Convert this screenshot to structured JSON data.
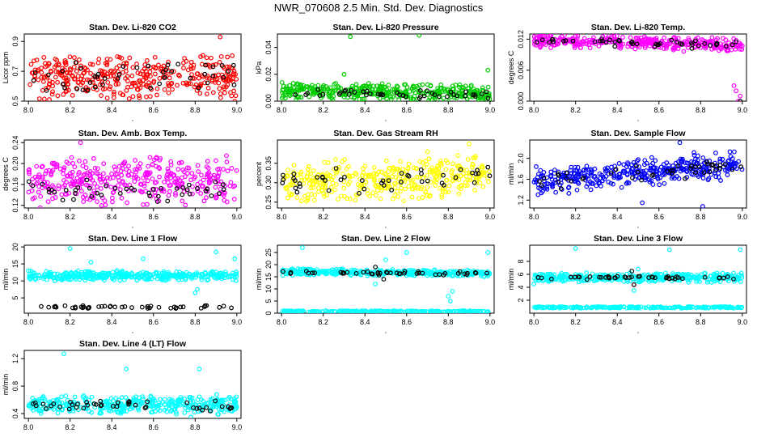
{
  "page_title": "NWR_070608  2.5 Min. Std. Dev. Diagnostics",
  "chart_data": [
    {
      "type": "scatter",
      "title": "Stan. Dev. Li-820 CO2",
      "ylabel": "Licor ppm",
      "color": "#ff0000",
      "xlim": [
        7.98,
        9.02
      ],
      "ylim": [
        0.5,
        0.95
      ],
      "xticks": [
        "8.0",
        "8.2",
        "8.4",
        "8.6",
        "8.8",
        "9.0"
      ],
      "yticks": [
        "0.5",
        "0.7",
        "0.9"
      ],
      "series": [
        {
          "name": "colored",
          "base": 0.66,
          "spread": 0.16,
          "trend": 0,
          "outliers": [
            [
              8.92,
              0.93
            ],
            [
              8.99,
              0.5
            ]
          ]
        },
        {
          "name": "black",
          "base": 0.67,
          "spread": 0.13,
          "trend": 0,
          "outliers": []
        }
      ]
    },
    {
      "type": "scatter",
      "title": "Stan. Dev. Li-820 Pressure",
      "ylabel": "kPa",
      "color": "#00cc00",
      "xlim": [
        7.98,
        9.02
      ],
      "ylim": [
        0,
        0.05
      ],
      "xticks": [
        "8.0",
        "8.2",
        "8.4",
        "8.6",
        "8.8",
        "9.0"
      ],
      "yticks": [
        "0.00",
        "0.02",
        "0.04"
      ],
      "series": [
        {
          "name": "colored",
          "base": 0.008,
          "spread": 0.007,
          "trend": -0.002,
          "outliers": [
            [
              8.33,
              0.048
            ],
            [
              8.66,
              0.049
            ],
            [
              8.99,
              0.023
            ],
            [
              8.3,
              0.02
            ]
          ]
        },
        {
          "name": "black",
          "base": 0.006,
          "spread": 0.004,
          "trend": -0.002,
          "outliers": []
        }
      ]
    },
    {
      "type": "scatter",
      "title": "Stan. Dev. Li-820 Temp.",
      "ylabel": "degrees C",
      "color": "#ff00ff",
      "xlim": [
        7.98,
        9.02
      ],
      "ylim": [
        0,
        0.013
      ],
      "xticks": [
        "8.0",
        "8.2",
        "8.4",
        "8.6",
        "8.8",
        "9.0"
      ],
      "yticks": [
        "0.000",
        "0.006",
        "0.012"
      ],
      "series": [
        {
          "name": "colored",
          "base": 0.0118,
          "spread": 0.0015,
          "trend": -0.001,
          "outliers": [
            [
              8.96,
              0.003
            ],
            [
              8.98,
              0.0
            ],
            [
              8.99,
              0.001
            ],
            [
              8.97,
              0.002
            ]
          ]
        },
        {
          "name": "black",
          "base": 0.0118,
          "spread": 0.001,
          "trend": -0.001,
          "outliers": [
            [
              8.99,
              0.0
            ]
          ]
        }
      ]
    },
    {
      "type": "scatter",
      "title": "Stan. Dev. Amb. Box Temp.",
      "ylabel": "degrees C",
      "color": "#ff00ff",
      "xlim": [
        7.98,
        9.02
      ],
      "ylim": [
        0.115,
        0.245
      ],
      "xticks": [
        "8.0",
        "8.2",
        "8.4",
        "8.6",
        "8.8",
        "9.0"
      ],
      "yticks": [
        "0.12",
        "0.16",
        "0.20",
        "0.24"
      ],
      "series": [
        {
          "name": "colored",
          "base": 0.165,
          "spread": 0.05,
          "trend": 0,
          "outliers": [
            [
              8.25,
              0.24
            ],
            [
              8.95,
              0.215
            ]
          ]
        },
        {
          "name": "black",
          "base": 0.148,
          "spread": 0.025,
          "trend": 0,
          "outliers": []
        }
      ]
    },
    {
      "type": "scatter",
      "title": "Stan. Dev. Gas Stream RH",
      "ylabel": "percent",
      "color": "#ffff00",
      "xlim": [
        7.98,
        9.02
      ],
      "ylim": [
        0.235,
        0.41
      ],
      "xticks": [
        "8.0",
        "8.2",
        "8.4",
        "8.6",
        "8.8",
        "9.0"
      ],
      "yticks": [
        "0.25",
        "0.30",
        "0.35"
      ],
      "series": [
        {
          "name": "colored",
          "base": 0.3,
          "spread": 0.06,
          "trend": 0.02,
          "outliers": [
            [
              8.9,
              0.4
            ],
            [
              8.7,
              0.38
            ]
          ]
        },
        {
          "name": "black",
          "base": 0.3,
          "spread": 0.04,
          "trend": 0.02,
          "outliers": [
            [
              8.99,
              0.34
            ]
          ]
        }
      ]
    },
    {
      "type": "scatter",
      "title": "Stan. Dev. Sample Flow",
      "ylabel": "ml/min",
      "color": "#0000ff",
      "xlim": [
        7.98,
        9.02
      ],
      "ylim": [
        1.05,
        2.35
      ],
      "xticks": [
        "8.0",
        "8.2",
        "8.4",
        "8.6",
        "8.8",
        "9.0"
      ],
      "yticks": [
        "1.2",
        "1.6",
        "2.0"
      ],
      "series": [
        {
          "name": "colored",
          "base": 1.55,
          "spread": 0.3,
          "trend": 0.35,
          "outliers": [
            [
              8.81,
              1.08
            ],
            [
              8.7,
              2.3
            ],
            [
              8.52,
              1.15
            ]
          ]
        },
        {
          "name": "black",
          "base": 1.55,
          "spread": 0.2,
          "trend": 0.3,
          "outliers": []
        }
      ]
    },
    {
      "type": "scatter",
      "title": "Stan. Dev. Line 1 Flow",
      "ylabel": "ml/min",
      "color": "#00ffff",
      "xlim": [
        7.98,
        9.02
      ],
      "ylim": [
        0.5,
        20.5
      ],
      "xticks": [
        "8.0",
        "8.2",
        "8.4",
        "8.6",
        "8.8",
        "9.0"
      ],
      "yticks": [
        "5",
        "10",
        "15",
        "20"
      ],
      "series": [
        {
          "name": "colored",
          "base": 11.5,
          "spread": 1.6,
          "trend": 0,
          "outliers": [
            [
              8.8,
              6.5
            ],
            [
              8.81,
              7.5
            ],
            [
              8.2,
              19.5
            ],
            [
              8.9,
              18.5
            ],
            [
              8.99,
              16.5
            ],
            [
              8.0,
              13
            ],
            [
              8.55,
              16.5
            ],
            [
              8.3,
              15.5
            ]
          ]
        },
        {
          "name": "black",
          "base": 2.3,
          "spread": 0.5,
          "trend": 0,
          "outliers": []
        }
      ]
    },
    {
      "type": "scatter",
      "title": "Stan. Dev. Line 2 Flow",
      "ylabel": "ml/min",
      "color": "#00ffff",
      "xlim": [
        7.98,
        9.02
      ],
      "ylim": [
        0,
        28
      ],
      "xticks": [
        "8.0",
        "8.2",
        "8.4",
        "8.6",
        "8.8",
        "9.0"
      ],
      "yticks": [
        "0",
        "5",
        "10",
        "15",
        "20",
        "25"
      ],
      "series": [
        {
          "name": "colored",
          "base": 17,
          "spread": 1.5,
          "trend": -0.5,
          "outliers": [
            [
              8.8,
              7
            ],
            [
              8.81,
              5
            ],
            [
              8.82,
              9
            ],
            [
              8.45,
              12
            ],
            [
              8.5,
              22
            ],
            [
              8.99,
              25
            ],
            [
              8.6,
              25
            ],
            [
              8.1,
              27
            ]
          ]
        },
        {
          "name": "black",
          "base": 16.8,
          "spread": 1.0,
          "trend": -0.5,
          "outliers": [
            [
              8.45,
              19
            ],
            [
              8.49,
              14
            ]
          ]
        }
      ]
    },
    {
      "type": "scatter",
      "title": "Stan. Dev. Line 3 Flow",
      "ylabel": "ml/min",
      "color": "#00ffff",
      "xlim": [
        7.98,
        9.02
      ],
      "ylim": [
        0,
        10.5
      ],
      "xticks": [
        "8.0",
        "8.2",
        "8.4",
        "8.6",
        "8.8",
        "9.0"
      ],
      "yticks": [
        "2",
        "4",
        "6",
        "8"
      ],
      "series": [
        {
          "name": "colored",
          "base": 5.5,
          "spread": 0.8,
          "trend": 0,
          "outliers": [
            [
              8.0,
              4.5
            ],
            [
              8.48,
              3.5
            ],
            [
              8.5,
              6.8
            ],
            [
              8.65,
              9.8
            ],
            [
              8.99,
              9.8
            ],
            [
              8.2,
              10
            ]
          ]
        },
        {
          "name": "black",
          "base": 5.5,
          "spread": 0.4,
          "trend": 0,
          "outliers": [
            [
              8.47,
              6.5
            ],
            [
              8.48,
              4.4
            ]
          ]
        }
      ]
    },
    {
      "type": "scatter",
      "title": "Stan. Dev. Line 4 (LT) Flow",
      "ylabel": "ml/min",
      "color": "#00ffff",
      "xlim": [
        7.98,
        9.02
      ],
      "ylim": [
        0.33,
        1.32
      ],
      "xticks": [
        "8.0",
        "8.2",
        "8.4",
        "8.6",
        "8.8",
        "9.0"
      ],
      "yticks": [
        "0.4",
        "0.8",
        "1.2"
      ],
      "series": [
        {
          "name": "colored",
          "base": 0.53,
          "spread": 0.15,
          "trend": 0,
          "outliers": [
            [
              8.17,
              1.27
            ],
            [
              8.47,
              1.05
            ],
            [
              8.82,
              1.05
            ],
            [
              8.78,
              0.35
            ]
          ]
        },
        {
          "name": "black",
          "base": 0.52,
          "spread": 0.1,
          "trend": 0,
          "outliers": []
        }
      ]
    }
  ]
}
